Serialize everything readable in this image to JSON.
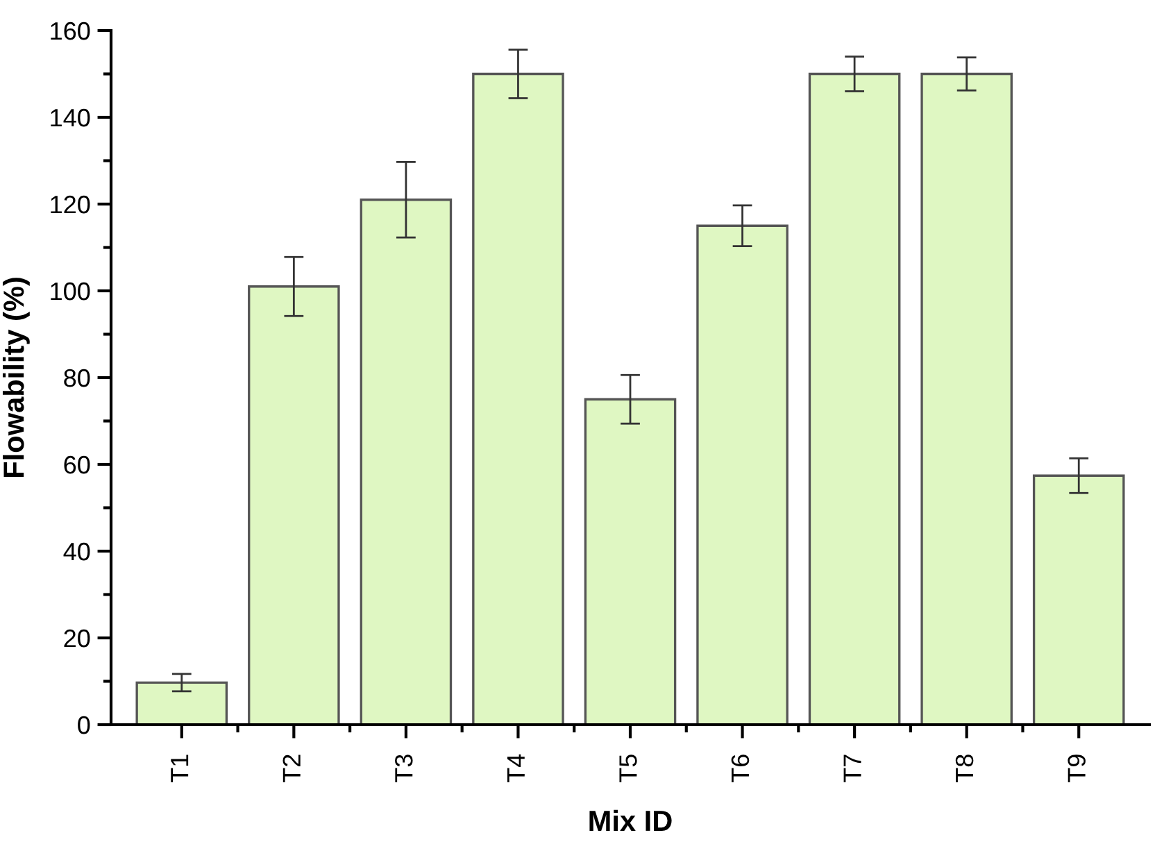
{
  "chart_data": {
    "type": "bar",
    "xlabel": "Mix ID",
    "ylabel": "Flowability (%)",
    "categories": [
      "T1",
      "T2",
      "T3",
      "T4",
      "T5",
      "T6",
      "T7",
      "T8",
      "T9"
    ],
    "values": [
      9.7,
      101,
      121,
      150,
      75,
      115,
      150,
      150,
      57.4
    ],
    "errors": [
      2,
      6.8,
      8.7,
      5.6,
      5.6,
      4.7,
      4,
      3.8,
      4
    ],
    "color": "#dff7c2",
    "ylim": [
      0,
      160
    ],
    "yticks": [
      0,
      20,
      40,
      60,
      80,
      100,
      120,
      140,
      160
    ],
    "grid": false,
    "legend": false
  }
}
